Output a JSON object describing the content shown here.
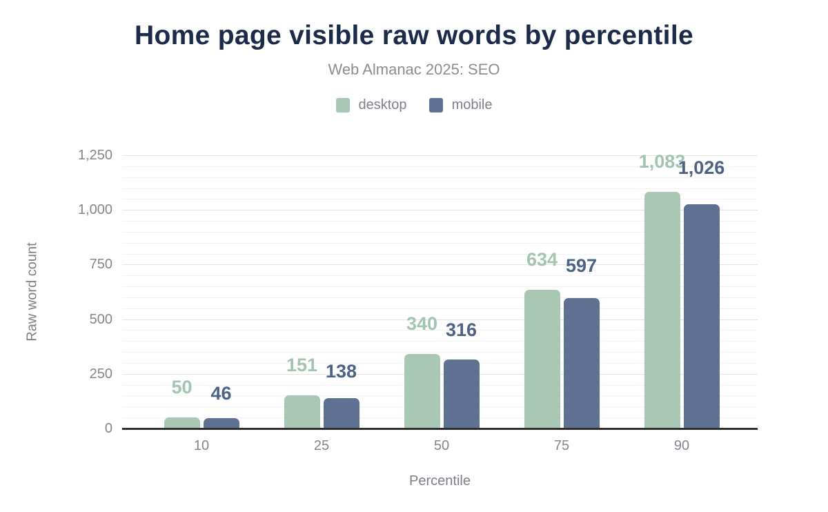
{
  "header": {
    "title": "Home page visible raw words by percentile",
    "subtitle": "Web Almanac 2025: SEO"
  },
  "chart_data": {
    "type": "bar",
    "title": "Home page visible raw words by percentile",
    "subtitle": "Web Almanac 2025: SEO",
    "xlabel": "Percentile",
    "ylabel": "Raw word count",
    "categories": [
      "10",
      "25",
      "50",
      "75",
      "90"
    ],
    "series": [
      {
        "name": "desktop",
        "color": "#a8c8b5",
        "label_color": "#a2c4b0",
        "values": [
          50,
          151,
          340,
          634,
          1083
        ],
        "labels": [
          "50",
          "151",
          "340",
          "634",
          "1,083"
        ]
      },
      {
        "name": "mobile",
        "color": "#5e7190",
        "label_color": "#4d6285",
        "values": [
          46,
          138,
          316,
          597,
          1026
        ],
        "labels": [
          "46",
          "138",
          "316",
          "597",
          "1,026"
        ]
      }
    ],
    "ylim": [
      0,
      1250
    ],
    "yticks": [
      {
        "v": 0,
        "label": "0"
      },
      {
        "v": 250,
        "label": "250"
      },
      {
        "v": 500,
        "label": "500"
      },
      {
        "v": 750,
        "label": "750"
      },
      {
        "v": 1000,
        "label": "1,000"
      },
      {
        "v": 1250,
        "label": "1,250"
      }
    ],
    "grid": {
      "on": true,
      "major_step": 250,
      "minor_step": 50
    },
    "legend_position": "top"
  }
}
